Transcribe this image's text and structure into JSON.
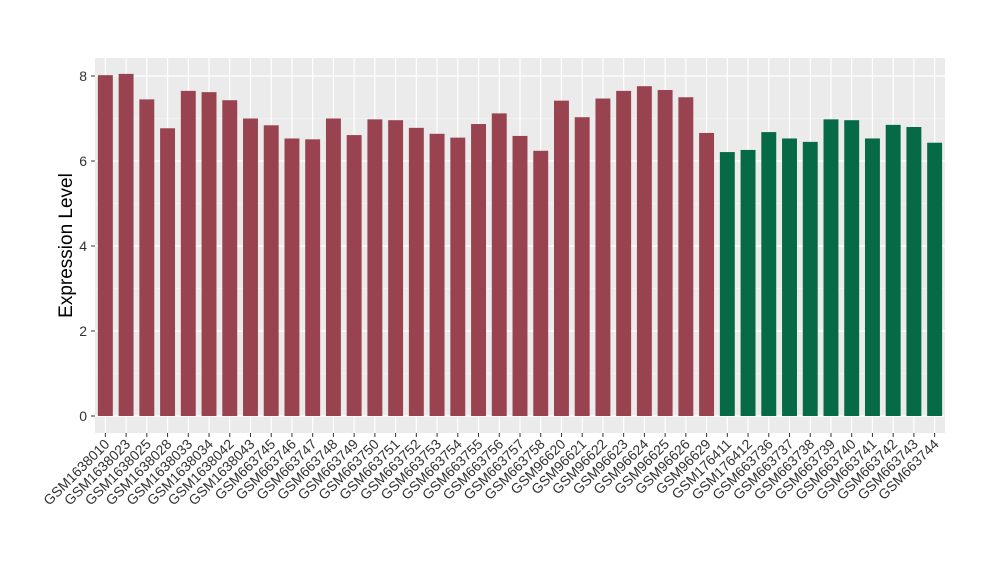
{
  "chart_data": {
    "type": "bar",
    "title": "",
    "xlabel": "",
    "ylabel": "Expression Level",
    "ylim": [
      0,
      8.4
    ],
    "yticks": [
      0,
      2,
      4,
      6,
      8
    ],
    "grid": true,
    "legend": "none",
    "colors": {
      "group_a": "#9A4350",
      "group_b": "#076A46",
      "panel_bg": "#EBEBEB",
      "grid_major": "#FFFFFF"
    },
    "categories": [
      "GSM1638010",
      "GSM1638023",
      "GSM1638025",
      "GSM1638028",
      "GSM1638033",
      "GSM1638034",
      "GSM1638042",
      "GSM1638043",
      "GSM663745",
      "GSM663746",
      "GSM663747",
      "GSM663748",
      "GSM663749",
      "GSM663750",
      "GSM663751",
      "GSM663752",
      "GSM663753",
      "GSM663754",
      "GSM663755",
      "GSM663756",
      "GSM663757",
      "GSM663758",
      "GSM96620",
      "GSM96621",
      "GSM96622",
      "GSM96623",
      "GSM96624",
      "GSM96625",
      "GSM96626",
      "GSM96629",
      "GSM176411",
      "GSM176412",
      "GSM663736",
      "GSM663737",
      "GSM663738",
      "GSM663739",
      "GSM663740",
      "GSM663741",
      "GSM663742",
      "GSM663743",
      "GSM663744"
    ],
    "values": [
      8.02,
      8.05,
      7.45,
      6.77,
      7.65,
      7.62,
      7.43,
      7.0,
      6.84,
      6.53,
      6.51,
      7.0,
      6.61,
      6.98,
      6.96,
      6.78,
      6.64,
      6.55,
      6.87,
      7.12,
      6.59,
      6.24,
      7.42,
      7.03,
      7.47,
      7.65,
      7.76,
      7.67,
      7.5,
      6.66,
      6.21,
      6.26,
      6.68,
      6.53,
      6.45,
      6.98,
      6.96,
      6.53,
      6.85,
      6.8,
      6.43
    ],
    "groups": [
      "a",
      "a",
      "a",
      "a",
      "a",
      "a",
      "a",
      "a",
      "a",
      "a",
      "a",
      "a",
      "a",
      "a",
      "a",
      "a",
      "a",
      "a",
      "a",
      "a",
      "a",
      "a",
      "a",
      "a",
      "a",
      "a",
      "a",
      "a",
      "a",
      "a",
      "b",
      "b",
      "b",
      "b",
      "b",
      "b",
      "b",
      "b",
      "b",
      "b",
      "b"
    ]
  }
}
